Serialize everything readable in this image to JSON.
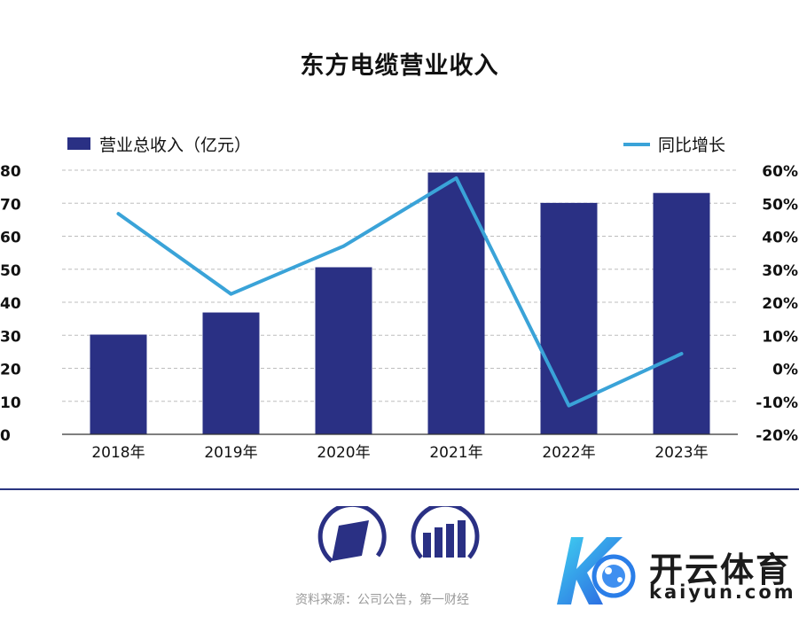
{
  "title": "东方电缆营业收入",
  "chart_data": {
    "type": "bar",
    "categories": [
      "2018年",
      "2019年",
      "2020年",
      "2021年",
      "2022年",
      "2023年"
    ],
    "series": [
      {
        "name": "营业总收入（亿元）",
        "type": "bar",
        "axis": "left",
        "values": [
          30.2,
          36.9,
          50.6,
          79.3,
          70.1,
          73.1
        ],
        "color": "#2a3084"
      },
      {
        "name": "同比增长",
        "type": "line",
        "axis": "right",
        "values": [
          46.8,
          22.5,
          37.0,
          57.6,
          -11.3,
          4.4
        ],
        "color": "#3aa3d8"
      }
    ],
    "yleft": {
      "ticks": [
        "0",
        "10",
        "20",
        "30",
        "40",
        "50",
        "60",
        "70",
        "80"
      ],
      "lim": [
        0,
        80
      ]
    },
    "yright": {
      "ticks": [
        "-20%",
        "-10%",
        "0%",
        "10%",
        "20%",
        "30%",
        "40%",
        "50%",
        "60%"
      ],
      "lim": [
        -20,
        60
      ]
    },
    "grid": "dashed",
    "legend": "top"
  },
  "footer": {
    "source": "资料来源：公司公告，第一财经",
    "brand_name": "开云体育",
    "brand_domain": "kaiyun.com"
  },
  "colors": {
    "bar": "#2a3084",
    "line": "#3aa3d8",
    "rule": "#2a3580"
  },
  "icons": [
    "parallelogram-logo-icon",
    "bars-logo-icon",
    "kaiyun-logo-icon"
  ]
}
